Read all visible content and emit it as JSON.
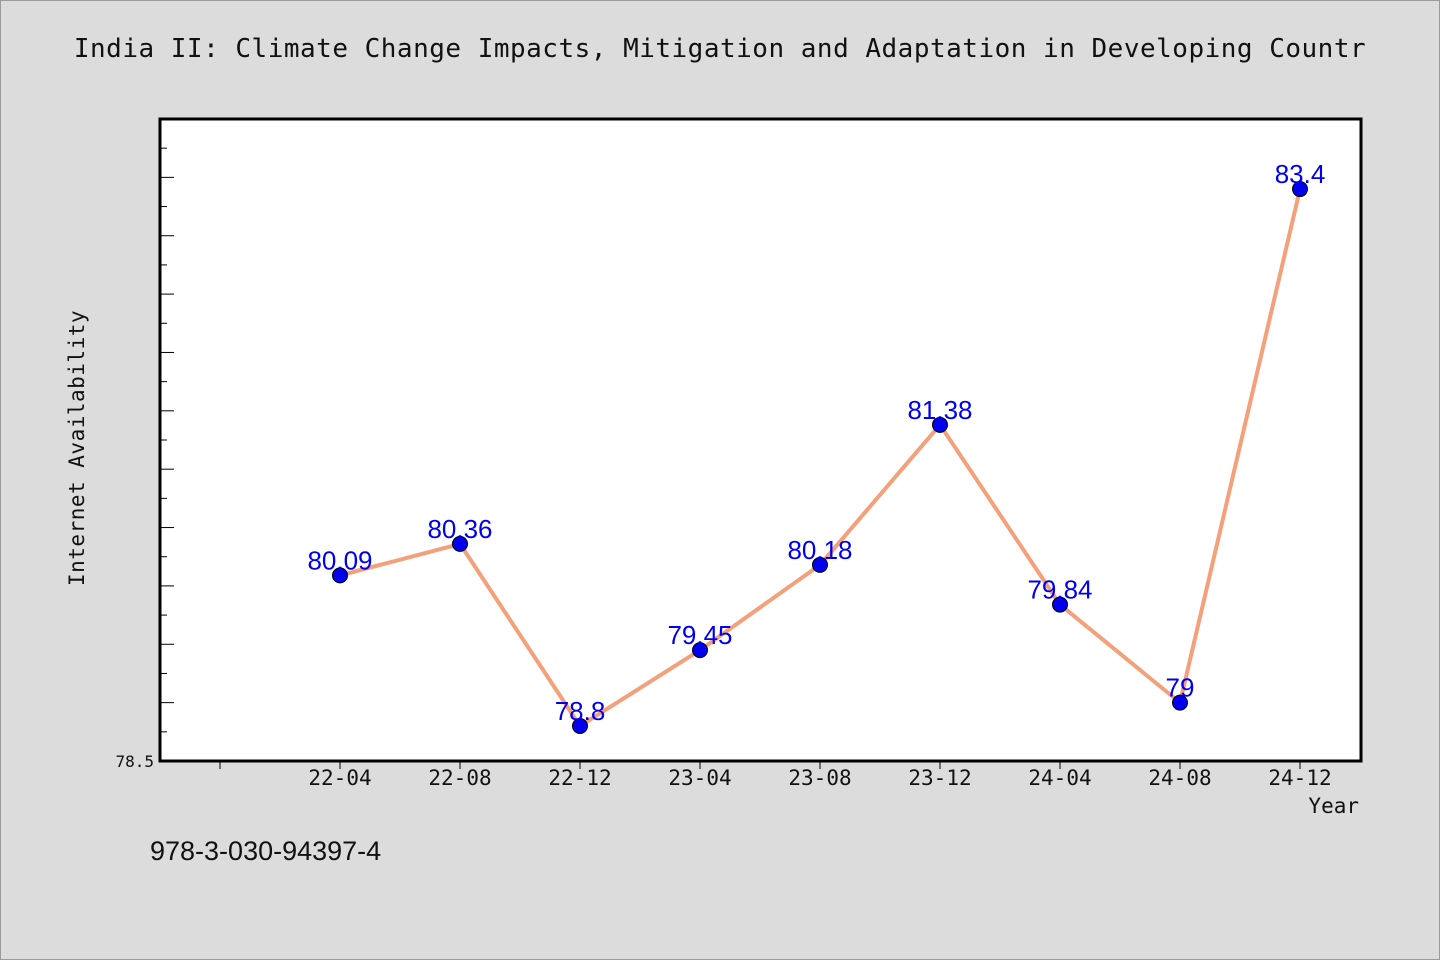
{
  "chart_data": {
    "type": "line",
    "title": "India II: Climate Change Impacts, Mitigation and Adaptation in Developing Countr",
    "xlabel": "Year",
    "ylabel": "Internet Availability",
    "categories": [
      "22-04",
      "22-08",
      "22-12",
      "23-04",
      "23-08",
      "23-12",
      "24-04",
      "24-08",
      "24-12"
    ],
    "series": [
      {
        "values": [
          80.09,
          80.36,
          78.8,
          79.45,
          80.18,
          81.38,
          79.84,
          79,
          83.4
        ]
      }
    ],
    "point_labels": [
      "80.09",
      "80.36",
      "78.8",
      "79.45",
      "80.18",
      "81.38",
      "79.84",
      "79",
      "83.4"
    ],
    "y_tick_label": "78.5",
    "ylim": [
      78.5,
      84.0
    ],
    "grid": false,
    "colors": {
      "line": "#f4a07a",
      "marker": "#0000ee",
      "label": "#0000ee",
      "plot_bg": "#ffffff",
      "page_bg": "#dcdcdc"
    }
  },
  "footer": {
    "code": "978-3-030-94397-4"
  }
}
